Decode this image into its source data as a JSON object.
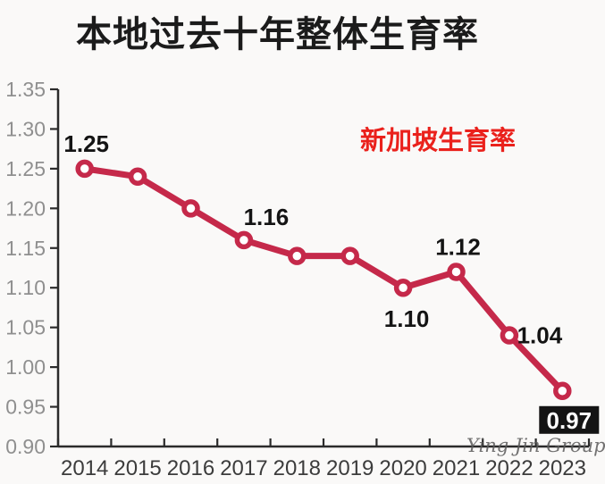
{
  "chart_data": {
    "type": "line",
    "title": "本地过去十年整体生育率",
    "annotation": {
      "text": "新加坡生育率",
      "color": "#ea211c"
    },
    "categories": [
      "2014",
      "2015",
      "2016",
      "2017",
      "2018",
      "2019",
      "2020",
      "2021",
      "2022",
      "2023"
    ],
    "series": [
      {
        "name": "新加坡生育率",
        "values": [
          1.25,
          1.24,
          1.2,
          1.16,
          1.14,
          1.14,
          1.1,
          1.12,
          1.04,
          0.97
        ]
      }
    ],
    "point_labels": [
      {
        "index": 0,
        "text": "1.25",
        "placement": "above"
      },
      {
        "index": 3,
        "text": "1.16",
        "placement": "above-right"
      },
      {
        "index": 6,
        "text": "1.10",
        "placement": "below"
      },
      {
        "index": 7,
        "text": "1.12",
        "placement": "above"
      },
      {
        "index": 8,
        "text": "1.04",
        "placement": "right"
      },
      {
        "index": 9,
        "text": "0.97",
        "placement": "box-below"
      }
    ],
    "xlabel": "",
    "ylabel": "",
    "ylim": [
      0.9,
      1.35
    ],
    "ytick_step": 0.05,
    "grid": false,
    "legend_position": "none",
    "line_color": "#c5294a",
    "marker_fill": "#ffffff",
    "axis_color": "#2b2b2b",
    "label_box_color": "#141414",
    "watermark": "Ying Jin Group"
  }
}
